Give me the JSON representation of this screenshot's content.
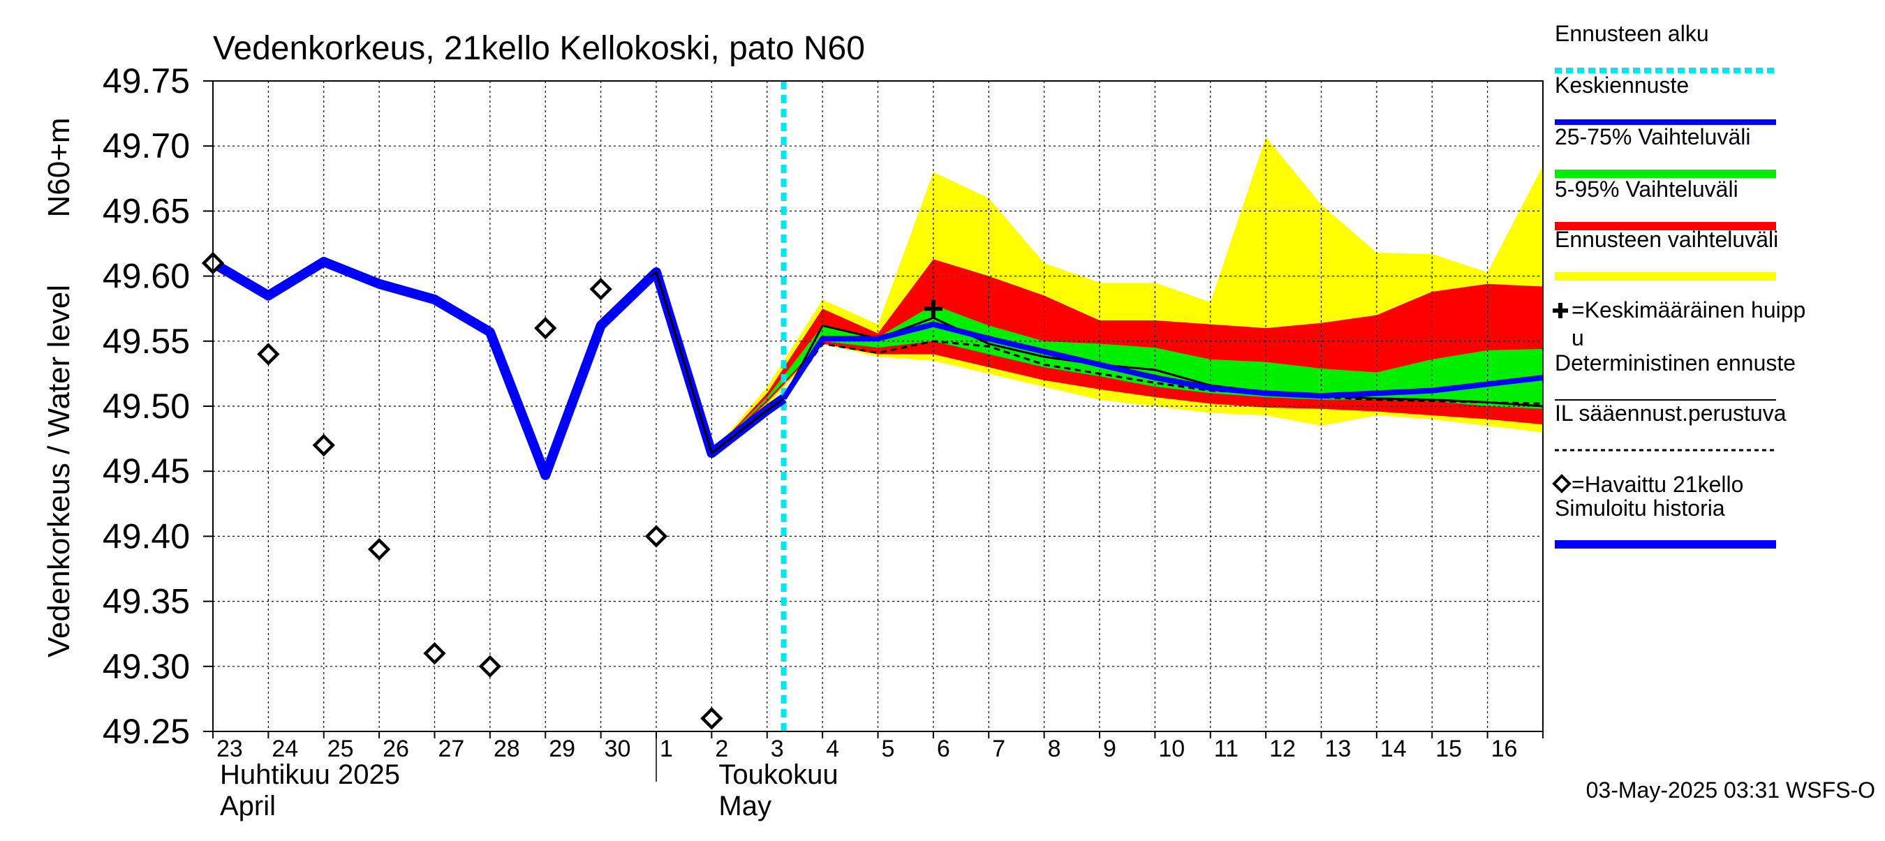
{
  "chart_data": {
    "type": "line",
    "title": "Vedenkorkeus, 21kello Kellokoski, pato N60",
    "ylabel": "Vedenkorkeus / Water level",
    "ylabel_unit": "N60+m",
    "ylim": [
      49.25,
      49.75
    ],
    "yticks": [
      "49.75",
      "49.70",
      "49.65",
      "49.60",
      "49.55",
      "49.50",
      "49.45",
      "49.40",
      "49.35",
      "49.30",
      "49.25"
    ],
    "x_day_labels": [
      "23",
      "24",
      "25",
      "26",
      "27",
      "28",
      "29",
      "30",
      "1",
      "2",
      "3",
      "4",
      "5",
      "6",
      "7",
      "8",
      "9",
      "10",
      "11",
      "12",
      "13",
      "14",
      "15",
      "16"
    ],
    "month_labels": [
      {
        "fi": "Huhtikuu  2025",
        "en": "April"
      },
      {
        "fi": "Toukokuu",
        "en": "May"
      }
    ],
    "forecast_start_day": 10.3,
    "colors": {
      "forecast_start": "#00e5ee",
      "mean_forecast": "#0000ff",
      "band_25_75": "#00ee00",
      "band_5_95": "#ff0000",
      "band_range": "#ffff00",
      "deterministic": "#000000",
      "observed": "#000000",
      "simulated": "#0000ff"
    },
    "series": [
      {
        "name": "Simuloitu historia",
        "x": [
          0,
          1,
          2,
          3,
          4,
          5,
          6,
          7,
          8,
          9,
          10,
          10.3
        ],
        "values": [
          49.61,
          49.585,
          49.611,
          49.594,
          49.582,
          49.557,
          49.447,
          49.562,
          49.603,
          49.464,
          49.497,
          49.506
        ]
      },
      {
        "name": "Keskiennuste",
        "x": [
          10.3,
          11,
          12,
          13,
          14,
          15,
          16,
          17,
          18,
          19,
          20,
          21,
          22,
          23,
          24
        ],
        "values": [
          49.506,
          49.552,
          49.552,
          49.563,
          49.552,
          49.542,
          49.532,
          49.522,
          49.514,
          49.51,
          49.508,
          49.51,
          49.512,
          49.517,
          49.522
        ]
      },
      {
        "name": "Deterministinen ennuste",
        "x": [
          7.9,
          8,
          9,
          10,
          10.3,
          11,
          12,
          13,
          14,
          15,
          16,
          17,
          18,
          19,
          20,
          21,
          22,
          23,
          24
        ],
        "values": [
          49.6,
          49.603,
          49.464,
          49.497,
          49.506,
          49.562,
          49.552,
          49.568,
          49.548,
          49.538,
          49.532,
          49.528,
          49.516,
          49.511,
          49.508,
          49.506,
          49.505,
          49.503,
          49.5
        ]
      },
      {
        "name": "IL sääennust.perustuva",
        "x": [
          10.3,
          11,
          12,
          13,
          14,
          15,
          16,
          17,
          18,
          19,
          20,
          21,
          22,
          23,
          24
        ],
        "values": [
          49.506,
          49.548,
          49.541,
          49.55,
          49.546,
          49.532,
          49.525,
          49.518,
          49.512,
          49.51,
          49.507,
          49.505,
          49.504,
          49.503,
          49.502
        ]
      },
      {
        "name": "=Havaittu 21kello",
        "x": [
          0,
          1,
          2,
          3,
          4,
          5,
          6,
          7,
          8,
          9
        ],
        "values": [
          49.61,
          49.54,
          49.47,
          49.39,
          49.31,
          49.3,
          49.56,
          49.59,
          49.4,
          49.26
        ]
      },
      {
        "name": "=Keskimääräinen huippu",
        "x": [
          13
        ],
        "values": [
          49.575
        ]
      }
    ],
    "bands": [
      {
        "name": "Ennusteen vaihteluväli",
        "x": [
          9,
          10,
          11,
          12,
          13,
          14,
          15,
          16,
          17,
          18,
          19,
          20,
          21,
          22,
          23,
          24
        ],
        "upper": [
          49.464,
          49.515,
          49.582,
          49.563,
          49.68,
          49.66,
          49.61,
          49.595,
          49.595,
          49.58,
          49.707,
          49.655,
          49.618,
          49.617,
          49.603,
          49.685
        ],
        "lower": [
          49.464,
          49.5,
          49.548,
          49.538,
          49.535,
          49.525,
          49.515,
          49.505,
          49.5,
          49.495,
          49.493,
          49.485,
          49.493,
          49.49,
          49.485,
          49.48
        ]
      },
      {
        "name": "5-95% Vaihteluväli",
        "x": [
          9,
          10,
          11,
          12,
          13,
          14,
          15,
          16,
          17,
          18,
          19,
          20,
          21,
          22,
          23,
          24
        ],
        "upper": [
          49.464,
          49.51,
          49.575,
          49.556,
          49.613,
          49.6,
          49.585,
          49.566,
          49.566,
          49.563,
          49.56,
          49.564,
          49.57,
          49.588,
          49.594,
          49.592
        ],
        "lower": [
          49.464,
          49.503,
          49.548,
          49.54,
          49.54,
          49.53,
          49.52,
          49.513,
          49.507,
          49.502,
          49.499,
          49.498,
          49.496,
          49.493,
          49.49,
          49.486
        ]
      },
      {
        "name": "25-75% Vaihteluväli",
        "x": [
          9,
          10,
          11,
          12,
          13,
          14,
          15,
          16,
          17,
          18,
          19,
          20,
          21,
          22,
          23,
          24
        ],
        "upper": [
          49.464,
          49.507,
          49.562,
          49.553,
          49.578,
          49.562,
          49.55,
          49.548,
          49.545,
          49.536,
          49.534,
          49.529,
          49.526,
          49.536,
          49.543,
          49.544
        ],
        "lower": [
          49.464,
          49.505,
          49.55,
          49.545,
          49.55,
          49.54,
          49.53,
          49.523,
          49.515,
          49.51,
          49.507,
          49.505,
          49.505,
          49.504,
          49.5,
          49.498
        ]
      }
    ],
    "legend": {
      "placement": "right",
      "items": [
        {
          "label": "Ennusteen alku",
          "style": "dotted-cyan"
        },
        {
          "label": "Keskiennuste",
          "style": "line-blue"
        },
        {
          "label": "25-75% Vaihteluväli",
          "style": "bar-green"
        },
        {
          "label": "5-95% Vaihteluväli",
          "style": "bar-red"
        },
        {
          "label": "Ennusteen vaihteluväli",
          "style": "bar-yellow"
        },
        {
          "label": "=Keskimääräinen huipp",
          "label2": "u",
          "style": "plus"
        },
        {
          "label": "Deterministinen ennuste",
          "style": "line-black"
        },
        {
          "label": "IL sääennust.perustuva",
          "style": "dashed-black"
        },
        {
          "label": "=Havaittu 21kello",
          "style": "diamond"
        },
        {
          "label": "Simuloitu historia",
          "style": "thick-blue"
        }
      ]
    },
    "grid": true,
    "footer": "03-May-2025 03:31 WSFS-O"
  }
}
